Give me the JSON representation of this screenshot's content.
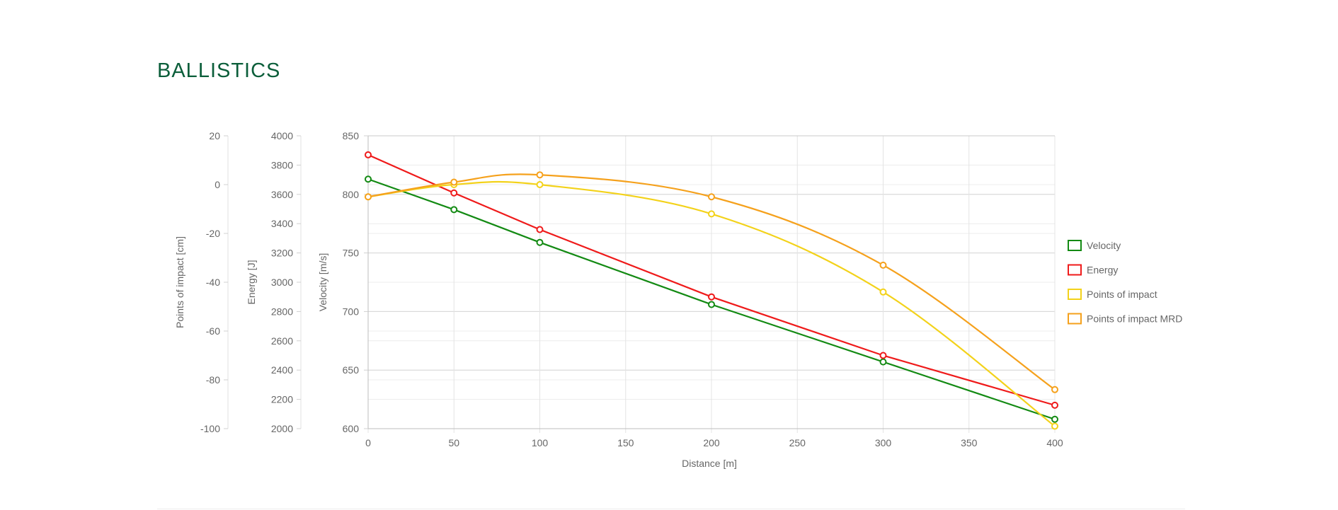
{
  "section": {
    "title": "BALLISTICS"
  },
  "chart_data": {
    "type": "line",
    "x": [
      0,
      50,
      100,
      200,
      300,
      400
    ],
    "xlabel": "Distance [m]",
    "xlim": [
      0,
      400
    ],
    "x_ticks": [
      0,
      50,
      100,
      150,
      200,
      250,
      300,
      350,
      400
    ],
    "grid": true,
    "legend_position": "right",
    "axes": [
      {
        "id": "poi",
        "label": "Points of impact [cm]",
        "ylim": [
          -100,
          20
        ],
        "ticks": [
          20,
          0,
          -20,
          -40,
          -60,
          -80,
          -100
        ]
      },
      {
        "id": "energy",
        "label": "Energy [J]",
        "ylim": [
          2000,
          4000
        ],
        "ticks": [
          4000,
          3800,
          3600,
          3400,
          3200,
          3000,
          2800,
          2600,
          2400,
          2200,
          2000
        ]
      },
      {
        "id": "velocity",
        "label": "Velocity [m/s]",
        "ylim": [
          600,
          850
        ],
        "ticks": [
          850,
          800,
          750,
          700,
          650,
          600
        ]
      }
    ],
    "series": [
      {
        "name": "Velocity",
        "axis": "velocity",
        "color": "#138a13",
        "smooth": false,
        "values": [
          813,
          787,
          759,
          706,
          657,
          608
        ]
      },
      {
        "name": "Energy",
        "axis": "energy",
        "color": "#ef1a1a",
        "smooth": false,
        "values": [
          3870,
          3610,
          3360,
          2900,
          2500,
          2160
        ]
      },
      {
        "name": "Points of impact",
        "axis": "poi",
        "color": "#f3d21a",
        "smooth": true,
        "values": [
          -5,
          0,
          0,
          -12,
          -44,
          -99
        ]
      },
      {
        "name": "Points of impact MRD",
        "axis": "poi",
        "color": "#f5a11c",
        "smooth": true,
        "values": [
          -5,
          1,
          4,
          -5,
          -33,
          -84
        ]
      }
    ]
  }
}
